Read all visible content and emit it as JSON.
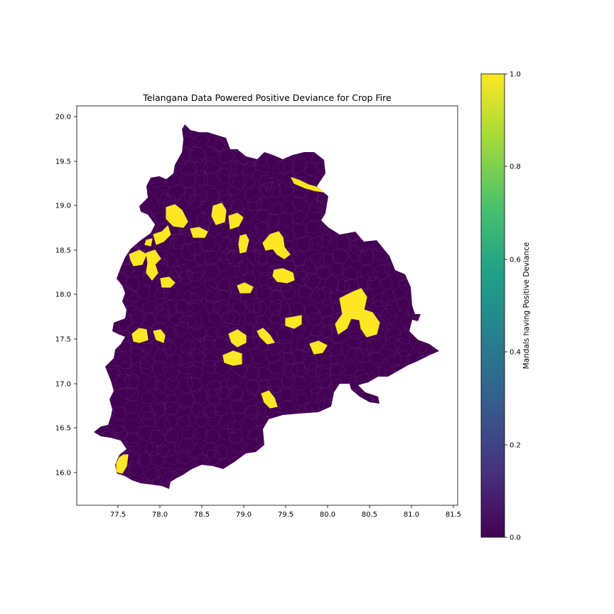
{
  "title": "Telangana Data Powered Positive Deviance for Crop Fire",
  "x_ticks": [
    "77.5",
    "78.0",
    "78.5",
    "79.0",
    "79.5",
    "80.0",
    "80.5",
    "81.0",
    "81.5"
  ],
  "y_ticks": [
    "20.0",
    "19.5",
    "19.0",
    "18.5",
    "18.0",
    "17.5",
    "17.0",
    "16.5",
    "16.0"
  ],
  "colorbar": {
    "label": "Mandals having Positive Deviance",
    "ticks": [
      "1.0",
      "0.8",
      "0.6",
      "0.4",
      "0.2",
      "0.0"
    ],
    "colors": [
      "#fde725",
      "#a0da39",
      "#4ac16d",
      "#1fa187",
      "#277f8e",
      "#365c8d",
      "#46327e",
      "#440154"
    ]
  },
  "map": {
    "region_color": "#440154",
    "highlight_color": "#fde725",
    "boundary_color": "#6b4a8a"
  }
}
